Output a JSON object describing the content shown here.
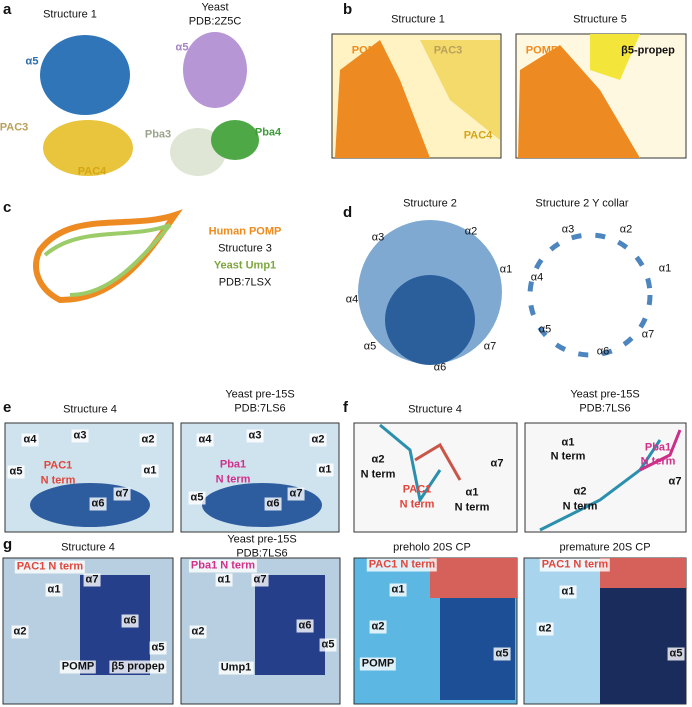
{
  "panel_a": {
    "letter": "a",
    "structure_title": "Structure 1",
    "yeast_title": "Yeast",
    "yeast_pdb": "PDB:2Z5C",
    "labels": [
      "α5",
      "PAC3",
      "PAC4",
      "α5",
      "Pba3",
      "Pba4"
    ]
  },
  "panel_b": {
    "letter": "b",
    "titles": [
      "Structure 1",
      "Structure 5"
    ],
    "labels": [
      "POMP",
      "PAC3",
      "PAC4",
      "POMP",
      "β5-propep"
    ]
  },
  "panel_c": {
    "letter": "c",
    "legend": [
      "Human POMP",
      "Structure 3",
      "Yeast Ump1",
      "PDB:7LSX"
    ]
  },
  "panel_d": {
    "letter": "d",
    "titles": [
      "Structure 2",
      "Structure 2 Y collar"
    ],
    "left_labels": [
      "α3",
      "α2",
      "α1",
      "α4",
      "α5",
      "α6",
      "α7"
    ],
    "right_labels": [
      "α3",
      "α2",
      "α1",
      "α4",
      "α5",
      "α6",
      "α7"
    ]
  },
  "panel_e": {
    "letter": "e",
    "left_title": "Structure 4",
    "right_title": "Yeast pre-15S",
    "right_pdb": "PDB:7LS6",
    "left_labels": [
      "α4",
      "α3",
      "α2",
      "α5",
      "PAC1",
      "N term",
      "α1",
      "α6",
      "α7"
    ],
    "right_labels": [
      "α4",
      "α3",
      "α2",
      "Pba1",
      "N term",
      "α5",
      "α1",
      "α6",
      "α7"
    ]
  },
  "panel_f": {
    "letter": "f",
    "left_title": "Structure 4",
    "right_title": "Yeast pre-15S",
    "right_pdb": "PDB:7LS6",
    "left_labels": [
      "α2",
      "N term",
      "PAC1",
      "N term",
      "α1",
      "N term",
      "α7"
    ],
    "right_labels": [
      "α1",
      "N term",
      "Pba1",
      "N term",
      "α2",
      "N term",
      "α7"
    ]
  },
  "panel_g": {
    "letter": "g",
    "titles": [
      "Structure 4",
      "Yeast pre-15S",
      "PDB:7LS6",
      "preholo 20S CP",
      "premature 20S CP"
    ],
    "image1_labels": [
      "PAC1 N term",
      "α1",
      "α7",
      "α2",
      "α6",
      "α5",
      "POMP",
      "β5 propep"
    ],
    "image2_labels": [
      "Pba1 N term",
      "α1",
      "α7",
      "α2",
      "α6",
      "α5",
      "Ump1"
    ],
    "image3_labels": [
      "PAC1 N term",
      "α1",
      "α2",
      "POMP",
      "α5"
    ],
    "image4_labels": [
      "PAC1 N term",
      "α1",
      "α2",
      "α5"
    ]
  }
}
